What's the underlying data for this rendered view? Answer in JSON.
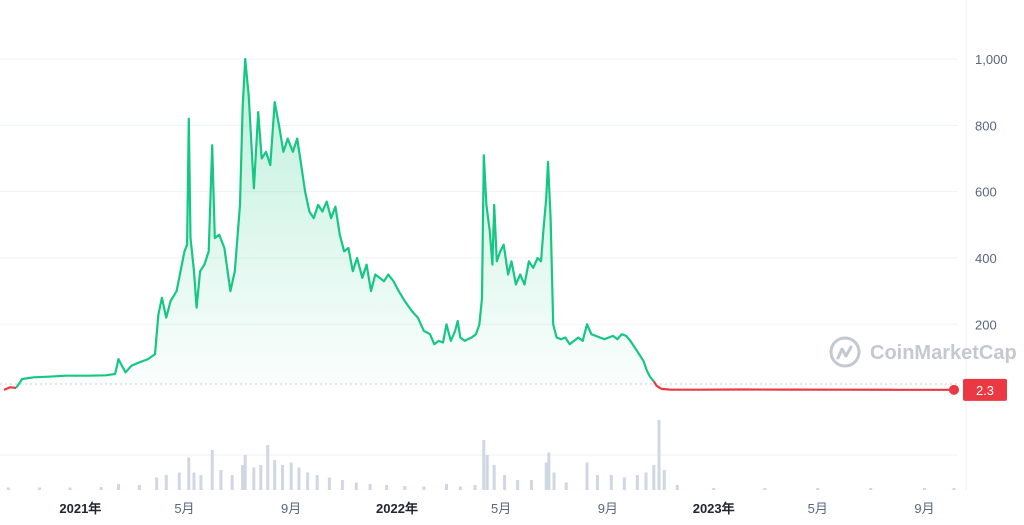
{
  "watermark": {
    "text": "CoinMarketCap",
    "icon": "coinmarketcap-logo-icon"
  },
  "colors": {
    "up": "#16c784",
    "down": "#ea3943",
    "grid": "#eff2f5",
    "volume": "#cfd6e4"
  },
  "chart_data": {
    "type": "area",
    "xlabel": "",
    "ylabel": "",
    "ylim": [
      0,
      1100
    ],
    "y_ticks": [
      "1,000",
      "800",
      "600",
      "400",
      "200"
    ],
    "y_tick_values": [
      1000,
      800,
      600,
      400,
      200
    ],
    "x_ticks": [
      {
        "label": "2021年",
        "date": "2021-01-01",
        "year": true
      },
      {
        "label": "5月",
        "date": "2021-05-01",
        "year": false
      },
      {
        "label": "9月",
        "date": "2021-09-01",
        "year": false
      },
      {
        "label": "2022年",
        "date": "2022-01-01",
        "year": true
      },
      {
        "label": "5月",
        "date": "2022-05-01",
        "year": false
      },
      {
        "label": "9月",
        "date": "2022-09-01",
        "year": false
      },
      {
        "label": "2023年",
        "date": "2023-01-01",
        "year": true
      },
      {
        "label": "5月",
        "date": "2023-05-01",
        "year": false
      },
      {
        "label": "9月",
        "date": "2023-09-01",
        "year": false
      }
    ],
    "current_price": "2.3",
    "current_value": 2.3,
    "baseline_value": 20,
    "series": [
      {
        "values": [
          [
            "2020-10-05",
            2
          ],
          [
            "2020-10-12",
            10
          ],
          [
            "2020-10-19",
            8
          ],
          [
            "2020-10-26",
            35
          ],
          [
            "2020-11-08",
            40
          ],
          [
            "2020-11-25",
            42
          ],
          [
            "2020-12-15",
            45
          ],
          [
            "2021-01-10",
            45
          ],
          [
            "2021-01-30",
            46
          ],
          [
            "2021-02-10",
            50
          ],
          [
            "2021-02-14",
            95
          ],
          [
            "2021-02-17",
            80
          ],
          [
            "2021-02-22",
            55
          ],
          [
            "2021-03-01",
            75
          ],
          [
            "2021-03-10",
            85
          ],
          [
            "2021-03-20",
            95
          ],
          [
            "2021-03-28",
            110
          ],
          [
            "2021-04-01",
            230
          ],
          [
            "2021-04-05",
            280
          ],
          [
            "2021-04-10",
            220
          ],
          [
            "2021-04-15",
            270
          ],
          [
            "2021-04-22",
            300
          ],
          [
            "2021-05-01",
            420
          ],
          [
            "2021-05-04",
            440
          ],
          [
            "2021-05-06",
            820
          ],
          [
            "2021-05-08",
            460
          ],
          [
            "2021-05-12",
            360
          ],
          [
            "2021-05-15",
            250
          ],
          [
            "2021-05-19",
            360
          ],
          [
            "2021-05-24",
            380
          ],
          [
            "2021-05-29",
            420
          ],
          [
            "2021-06-02",
            740
          ],
          [
            "2021-06-05",
            460
          ],
          [
            "2021-06-10",
            470
          ],
          [
            "2021-06-16",
            430
          ],
          [
            "2021-06-23",
            300
          ],
          [
            "2021-06-28",
            360
          ],
          [
            "2021-07-01",
            460
          ],
          [
            "2021-07-04",
            560
          ],
          [
            "2021-07-07",
            850
          ],
          [
            "2021-07-10",
            1000
          ],
          [
            "2021-07-14",
            890
          ],
          [
            "2021-07-20",
            610
          ],
          [
            "2021-07-25",
            840
          ],
          [
            "2021-07-29",
            700
          ],
          [
            "2021-08-03",
            720
          ],
          [
            "2021-08-08",
            680
          ],
          [
            "2021-08-13",
            870
          ],
          [
            "2021-08-18",
            800
          ],
          [
            "2021-08-23",
            720
          ],
          [
            "2021-08-28",
            760
          ],
          [
            "2021-09-03",
            720
          ],
          [
            "2021-09-08",
            760
          ],
          [
            "2021-09-12",
            690
          ],
          [
            "2021-09-17",
            600
          ],
          [
            "2021-09-22",
            540
          ],
          [
            "2021-09-27",
            520
          ],
          [
            "2021-10-02",
            560
          ],
          [
            "2021-10-07",
            540
          ],
          [
            "2021-10-12",
            570
          ],
          [
            "2021-10-17",
            520
          ],
          [
            "2021-10-22",
            555
          ],
          [
            "2021-10-27",
            470
          ],
          [
            "2021-11-01",
            420
          ],
          [
            "2021-11-06",
            430
          ],
          [
            "2021-11-11",
            360
          ],
          [
            "2021-11-16",
            400
          ],
          [
            "2021-11-22",
            340
          ],
          [
            "2021-11-27",
            380
          ],
          [
            "2021-12-02",
            300
          ],
          [
            "2021-12-07",
            350
          ],
          [
            "2021-12-12",
            340
          ],
          [
            "2021-12-17",
            330
          ],
          [
            "2021-12-22",
            350
          ],
          [
            "2021-12-28",
            330
          ],
          [
            "2022-01-03",
            300
          ],
          [
            "2022-01-10",
            270
          ],
          [
            "2022-01-18",
            240
          ],
          [
            "2022-01-25",
            220
          ],
          [
            "2022-02-01",
            180
          ],
          [
            "2022-02-08",
            170
          ],
          [
            "2022-02-13",
            140
          ],
          [
            "2022-02-18",
            150
          ],
          [
            "2022-02-23",
            145
          ],
          [
            "2022-02-27",
            200
          ],
          [
            "2022-03-04",
            150
          ],
          [
            "2022-03-09",
            180
          ],
          [
            "2022-03-12",
            210
          ],
          [
            "2022-03-15",
            160
          ],
          [
            "2022-03-20",
            150
          ],
          [
            "2022-03-28",
            160
          ],
          [
            "2022-04-02",
            170
          ],
          [
            "2022-04-06",
            200
          ],
          [
            "2022-04-09",
            280
          ],
          [
            "2022-04-11",
            710
          ],
          [
            "2022-04-14",
            560
          ],
          [
            "2022-04-18",
            480
          ],
          [
            "2022-04-21",
            380
          ],
          [
            "2022-04-23",
            560
          ],
          [
            "2022-04-26",
            390
          ],
          [
            "2022-04-30",
            420
          ],
          [
            "2022-05-04",
            440
          ],
          [
            "2022-05-09",
            350
          ],
          [
            "2022-05-13",
            390
          ],
          [
            "2022-05-18",
            320
          ],
          [
            "2022-05-23",
            350
          ],
          [
            "2022-05-28",
            320
          ],
          [
            "2022-06-02",
            390
          ],
          [
            "2022-06-07",
            370
          ],
          [
            "2022-06-12",
            400
          ],
          [
            "2022-06-16",
            390
          ],
          [
            "2022-06-19",
            490
          ],
          [
            "2022-06-22",
            580
          ],
          [
            "2022-06-24",
            690
          ],
          [
            "2022-06-27",
            520
          ],
          [
            "2022-06-30",
            200
          ],
          [
            "2022-07-04",
            160
          ],
          [
            "2022-07-09",
            155
          ],
          [
            "2022-07-14",
            160
          ],
          [
            "2022-07-19",
            140
          ],
          [
            "2022-07-24",
            150
          ],
          [
            "2022-07-29",
            160
          ],
          [
            "2022-08-03",
            150
          ],
          [
            "2022-08-08",
            200
          ],
          [
            "2022-08-13",
            170
          ],
          [
            "2022-08-18",
            165
          ],
          [
            "2022-08-23",
            160
          ],
          [
            "2022-08-28",
            155
          ],
          [
            "2022-09-02",
            160
          ],
          [
            "2022-09-07",
            165
          ],
          [
            "2022-09-12",
            155
          ],
          [
            "2022-09-17",
            170
          ],
          [
            "2022-09-22",
            165
          ],
          [
            "2022-09-27",
            150
          ],
          [
            "2022-10-02",
            130
          ],
          [
            "2022-10-07",
            110
          ],
          [
            "2022-10-12",
            90
          ],
          [
            "2022-10-16",
            60
          ],
          [
            "2022-10-20",
            40
          ],
          [
            "2022-10-24",
            28
          ],
          [
            "2022-10-27",
            15
          ],
          [
            "2022-10-30",
            10
          ],
          [
            "2022-11-02",
            5
          ],
          [
            "2022-11-12",
            3
          ],
          [
            "2022-12-15",
            2.8
          ],
          [
            "2023-02-01",
            3.4
          ],
          [
            "2023-04-01",
            3.0
          ],
          [
            "2023-06-01",
            2.6
          ],
          [
            "2023-08-01",
            2.4
          ],
          [
            "2023-10-05",
            2.3
          ]
        ]
      }
    ],
    "volume": [
      [
        "2020-10-10",
        0.05
      ],
      [
        "2020-11-15",
        0.05
      ],
      [
        "2020-12-20",
        0.05
      ],
      [
        "2021-01-25",
        0.06
      ],
      [
        "2021-02-14",
        0.12
      ],
      [
        "2021-03-10",
        0.1
      ],
      [
        "2021-03-30",
        0.25
      ],
      [
        "2021-04-10",
        0.3
      ],
      [
        "2021-04-25",
        0.35
      ],
      [
        "2021-05-06",
        0.65
      ],
      [
        "2021-05-12",
        0.35
      ],
      [
        "2021-05-20",
        0.3
      ],
      [
        "2021-06-02",
        0.8
      ],
      [
        "2021-06-12",
        0.4
      ],
      [
        "2021-06-25",
        0.3
      ],
      [
        "2021-07-07",
        0.5
      ],
      [
        "2021-07-10",
        0.7
      ],
      [
        "2021-07-20",
        0.45
      ],
      [
        "2021-07-28",
        0.5
      ],
      [
        "2021-08-05",
        0.9
      ],
      [
        "2021-08-13",
        0.6
      ],
      [
        "2021-08-22",
        0.5
      ],
      [
        "2021-09-01",
        0.55
      ],
      [
        "2021-09-10",
        0.45
      ],
      [
        "2021-09-20",
        0.35
      ],
      [
        "2021-10-01",
        0.3
      ],
      [
        "2021-10-15",
        0.25
      ],
      [
        "2021-10-30",
        0.2
      ],
      [
        "2021-11-15",
        0.15
      ],
      [
        "2021-12-01",
        0.12
      ],
      [
        "2021-12-20",
        0.1
      ],
      [
        "2022-01-10",
        0.08
      ],
      [
        "2022-02-01",
        0.07
      ],
      [
        "2022-02-27",
        0.12
      ],
      [
        "2022-03-15",
        0.07
      ],
      [
        "2022-04-01",
        0.1
      ],
      [
        "2022-04-11",
        1.0
      ],
      [
        "2022-04-15",
        0.7
      ],
      [
        "2022-04-23",
        0.5
      ],
      [
        "2022-05-05",
        0.3
      ],
      [
        "2022-05-20",
        0.2
      ],
      [
        "2022-06-05",
        0.2
      ],
      [
        "2022-06-22",
        0.55
      ],
      [
        "2022-06-25",
        0.75
      ],
      [
        "2022-07-01",
        0.35
      ],
      [
        "2022-07-15",
        0.15
      ],
      [
        "2022-08-08",
        0.55
      ],
      [
        "2022-08-20",
        0.3
      ],
      [
        "2022-09-05",
        0.3
      ],
      [
        "2022-09-20",
        0.25
      ],
      [
        "2022-10-05",
        0.3
      ],
      [
        "2022-10-15",
        0.35
      ],
      [
        "2022-10-24",
        0.5
      ],
      [
        "2022-10-30",
        1.4
      ],
      [
        "2022-11-05",
        0.4
      ],
      [
        "2022-11-20",
        0.1
      ],
      [
        "2023-01-01",
        0.04
      ],
      [
        "2023-03-01",
        0.04
      ],
      [
        "2023-05-01",
        0.04
      ],
      [
        "2023-07-01",
        0.04
      ],
      [
        "2023-09-01",
        0.04
      ],
      [
        "2023-10-05",
        0.04
      ]
    ]
  }
}
